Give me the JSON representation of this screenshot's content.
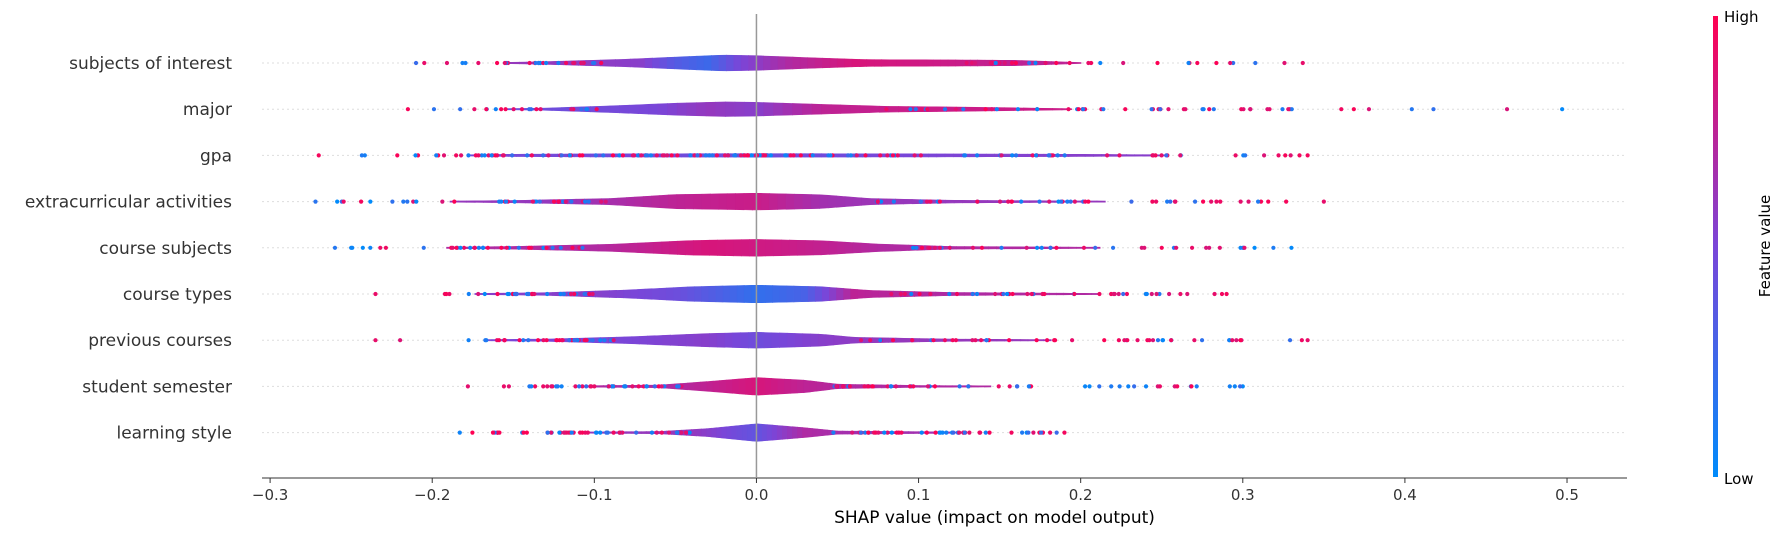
{
  "chart_data": {
    "type": "scatter",
    "subtype": "shap-violin-summary",
    "title": "",
    "xlabel": "SHAP value (impact on model output)",
    "ylabel": "",
    "xlim": [
      -0.305,
      0.537
    ],
    "xticks": [
      -0.3,
      -0.2,
      -0.1,
      0.0,
      0.1,
      0.2,
      0.3,
      0.4,
      0.5
    ],
    "xtick_labels": [
      "−0.3",
      "−0.2",
      "−0.1",
      "0.0",
      "0.1",
      "0.2",
      "0.3",
      "0.4",
      "0.5"
    ],
    "grid": false,
    "colorbar": {
      "label": "Feature value",
      "high_label": "High",
      "low_label": "Low",
      "high_color": "#ff0052",
      "low_color": "#008bfb",
      "mid_color": "#7a46d8"
    },
    "features": [
      {
        "name": "subjects of interest",
        "extent": [
          -0.21,
          0.337
        ],
        "widths": [
          [
            -0.21,
            0.0
          ],
          [
            -0.16,
            0.02
          ],
          [
            -0.13,
            0.06
          ],
          [
            -0.08,
            0.17
          ],
          [
            -0.04,
            0.3
          ],
          [
            -0.02,
            0.36
          ],
          [
            0.0,
            0.33
          ],
          [
            0.04,
            0.22
          ],
          [
            0.07,
            0.15
          ],
          [
            0.12,
            0.14
          ],
          [
            0.16,
            0.12
          ],
          [
            0.2,
            0.02
          ],
          [
            0.337,
            0.0
          ]
        ],
        "hue": [
          [
            -0.13,
            0.6
          ],
          [
            -0.07,
            0.55
          ],
          [
            -0.05,
            0.35
          ],
          [
            -0.03,
            0.25
          ],
          [
            -0.01,
            0.5
          ],
          [
            0.02,
            0.7
          ],
          [
            0.06,
            0.85
          ],
          [
            0.12,
            0.8
          ],
          [
            0.16,
            0.75
          ]
        ]
      },
      {
        "name": "major",
        "extent": [
          -0.215,
          0.497
        ],
        "widths": [
          [
            -0.215,
            0.0
          ],
          [
            -0.16,
            0.02
          ],
          [
            -0.13,
            0.05
          ],
          [
            -0.09,
            0.15
          ],
          [
            -0.05,
            0.27
          ],
          [
            -0.02,
            0.33
          ],
          [
            0.0,
            0.31
          ],
          [
            0.04,
            0.22
          ],
          [
            0.08,
            0.13
          ],
          [
            0.12,
            0.1
          ],
          [
            0.14,
            0.08
          ],
          [
            0.2,
            0.02
          ],
          [
            0.497,
            0.0
          ]
        ],
        "hue": [
          [
            -0.12,
            0.45
          ],
          [
            -0.06,
            0.5
          ],
          [
            -0.03,
            0.6
          ],
          [
            0.0,
            0.55
          ],
          [
            0.04,
            0.75
          ],
          [
            0.1,
            0.8
          ]
        ]
      },
      {
        "name": "gpa",
        "extent": [
          -0.27,
          0.34
        ],
        "widths": [
          [
            -0.27,
            0.0
          ],
          [
            -0.2,
            0.01
          ],
          [
            -0.15,
            0.05
          ],
          [
            -0.1,
            0.07
          ],
          [
            0.0,
            0.08
          ],
          [
            0.1,
            0.07
          ],
          [
            0.2,
            0.05
          ],
          [
            0.27,
            0.02
          ],
          [
            0.34,
            0.0
          ]
        ],
        "hue": [
          [
            -0.2,
            0.5
          ],
          [
            0.0,
            0.45
          ],
          [
            0.2,
            0.55
          ]
        ]
      },
      {
        "name": "extracurricular activities",
        "extent": [
          -0.272,
          0.35
        ],
        "widths": [
          [
            -0.272,
            0.0
          ],
          [
            -0.2,
            0.02
          ],
          [
            -0.15,
            0.05
          ],
          [
            -0.09,
            0.14
          ],
          [
            -0.05,
            0.32
          ],
          [
            0.0,
            0.38
          ],
          [
            0.04,
            0.31
          ],
          [
            0.07,
            0.14
          ],
          [
            0.12,
            0.06
          ],
          [
            0.2,
            0.03
          ],
          [
            0.35,
            0.0
          ]
        ],
        "hue": [
          [
            -0.12,
            0.6
          ],
          [
            -0.05,
            0.75
          ],
          [
            0.0,
            0.8
          ],
          [
            0.04,
            0.65
          ],
          [
            0.1,
            0.6
          ]
        ]
      },
      {
        "name": "course subjects",
        "extent": [
          -0.26,
          0.33
        ],
        "widths": [
          [
            -0.26,
            0.0
          ],
          [
            -0.2,
            0.02
          ],
          [
            -0.15,
            0.06
          ],
          [
            -0.09,
            0.16
          ],
          [
            -0.04,
            0.33
          ],
          [
            0.0,
            0.38
          ],
          [
            0.04,
            0.32
          ],
          [
            0.075,
            0.17
          ],
          [
            0.12,
            0.06
          ],
          [
            0.2,
            0.03
          ],
          [
            0.33,
            0.0
          ]
        ],
        "hue": [
          [
            -0.1,
            0.7
          ],
          [
            -0.03,
            0.85
          ],
          [
            0.02,
            0.8
          ],
          [
            0.08,
            0.7
          ]
        ]
      },
      {
        "name": "course types",
        "extent": [
          -0.235,
          0.29
        ],
        "widths": [
          [
            -0.235,
            0.0
          ],
          [
            -0.18,
            0.02
          ],
          [
            -0.13,
            0.06
          ],
          [
            -0.08,
            0.18
          ],
          [
            -0.04,
            0.33
          ],
          [
            0.0,
            0.4
          ],
          [
            0.04,
            0.33
          ],
          [
            0.07,
            0.16
          ],
          [
            0.12,
            0.07
          ],
          [
            0.2,
            0.03
          ],
          [
            0.29,
            0.0
          ]
        ],
        "hue": [
          [
            -0.1,
            0.55
          ],
          [
            -0.05,
            0.45
          ],
          [
            0.0,
            0.2
          ],
          [
            0.03,
            0.3
          ],
          [
            0.06,
            0.75
          ],
          [
            0.1,
            0.7
          ]
        ]
      },
      {
        "name": "previous courses",
        "extent": [
          -0.235,
          0.34
        ],
        "widths": [
          [
            -0.235,
            0.0
          ],
          [
            -0.18,
            0.02
          ],
          [
            -0.13,
            0.05
          ],
          [
            -0.08,
            0.15
          ],
          [
            -0.03,
            0.3
          ],
          [
            0.0,
            0.36
          ],
          [
            0.04,
            0.27
          ],
          [
            0.06,
            0.13
          ],
          [
            0.12,
            0.05
          ],
          [
            0.2,
            0.02
          ],
          [
            0.34,
            0.0
          ]
        ],
        "hue": [
          [
            -0.08,
            0.5
          ],
          [
            -0.03,
            0.55
          ],
          [
            0.0,
            0.45
          ],
          [
            0.04,
            0.55
          ],
          [
            0.08,
            0.6
          ]
        ]
      },
      {
        "name": "student semester",
        "extent": [
          -0.178,
          0.3
        ],
        "widths": [
          [
            -0.178,
            0.0
          ],
          [
            -0.12,
            0.02
          ],
          [
            -0.06,
            0.06
          ],
          [
            -0.03,
            0.22
          ],
          [
            0.0,
            0.4
          ],
          [
            0.03,
            0.28
          ],
          [
            0.05,
            0.1
          ],
          [
            0.1,
            0.04
          ],
          [
            0.2,
            0.01
          ],
          [
            0.3,
            0.0
          ]
        ],
        "hue": [
          [
            -0.05,
            0.7
          ],
          [
            0.0,
            0.85
          ],
          [
            0.03,
            0.75
          ],
          [
            0.06,
            0.7
          ]
        ]
      },
      {
        "name": "learning style",
        "extent": [
          -0.183,
          0.19
        ],
        "widths": [
          [
            -0.183,
            0.0
          ],
          [
            -0.12,
            0.02
          ],
          [
            -0.06,
            0.05
          ],
          [
            -0.03,
            0.18
          ],
          [
            0.0,
            0.4
          ],
          [
            0.03,
            0.22
          ],
          [
            0.05,
            0.07
          ],
          [
            0.12,
            0.03
          ],
          [
            0.19,
            0.0
          ]
        ],
        "hue": [
          [
            -0.04,
            0.6
          ],
          [
            0.0,
            0.4
          ],
          [
            0.03,
            0.7
          ],
          [
            0.06,
            0.65
          ]
        ]
      }
    ]
  }
}
